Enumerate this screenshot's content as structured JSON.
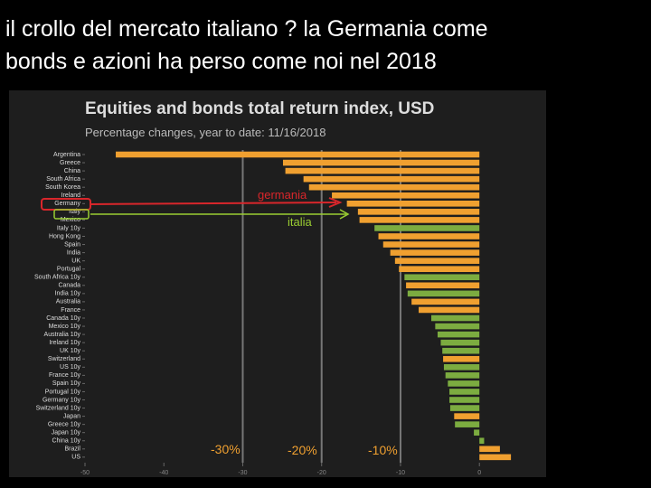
{
  "slide": {
    "title": [
      "il crollo del mercato italiano ? la Germania come",
      "bonds e azioni ha perso come noi nel 2018"
    ]
  },
  "chart_data": {
    "type": "bar",
    "orientation": "horizontal",
    "title": "Equities and bonds total return index, USD",
    "subtitle": "Percentage changes, year to date: 11/16/2018",
    "categories": [
      "Argentina",
      "Greece",
      "China",
      "South Africa",
      "South Korea",
      "Ireland",
      "Germany",
      "Italy",
      "Mexico",
      "Italy 10y",
      "Hong Kong",
      "Spain",
      "India",
      "UK",
      "Portugal",
      "South Africa 10y",
      "Canada",
      "India 10y",
      "Australia",
      "France",
      "Canada 10y",
      "Mexico 10y",
      "Australia 10y",
      "Ireland 10y",
      "UK 10y",
      "Switzerland",
      "US 10y",
      "France 10y",
      "Spain 10y",
      "Portugal 10y",
      "Germany 10y",
      "Switzerland 10y",
      "Japan",
      "Greece 10y",
      "Japan 10y",
      "China 10y",
      "Brazil",
      "US"
    ],
    "values": [
      -46.1,
      -24.9,
      -24.6,
      -22.3,
      -21.6,
      -18.7,
      -16.8,
      -15.4,
      -15.2,
      -13.3,
      -12.8,
      -12.2,
      -11.3,
      -10.7,
      -10.2,
      -9.5,
      -9.3,
      -9.1,
      -8.6,
      -7.7,
      -6.1,
      -5.6,
      -5.3,
      -4.9,
      -4.7,
      -4.6,
      -4.5,
      -4.3,
      -4.0,
      -3.8,
      -3.8,
      -3.7,
      -3.2,
      -3.1,
      -0.7,
      0.6,
      2.6,
      4.0
    ],
    "bar_colors": [
      "#f0a030",
      "#f0a030",
      "#f0a030",
      "#f0a030",
      "#f0a030",
      "#f0a030",
      "#f0a030",
      "#f0a030",
      "#f0a030",
      "#7cac40",
      "#f0a030",
      "#f0a030",
      "#f0a030",
      "#f0a030",
      "#f0a030",
      "#7cac40",
      "#f0a030",
      "#7cac40",
      "#f0a030",
      "#f0a030",
      "#7cac40",
      "#7cac40",
      "#7cac40",
      "#7cac40",
      "#7cac40",
      "#f0a030",
      "#7cac40",
      "#7cac40",
      "#7cac40",
      "#7cac40",
      "#7cac40",
      "#7cac40",
      "#f0a030",
      "#7cac40",
      "#7cac40",
      "#7cac40",
      "#f0a030",
      "#f0a030"
    ],
    "xlim": [
      -50,
      8
    ],
    "xticks": [
      -50,
      -40,
      -30,
      -20,
      -10,
      0
    ],
    "reference_lines": [
      -30,
      -20,
      -10
    ],
    "annotations": [
      "germania",
      "italia",
      "-30%",
      "-20%",
      "-10%"
    ]
  }
}
